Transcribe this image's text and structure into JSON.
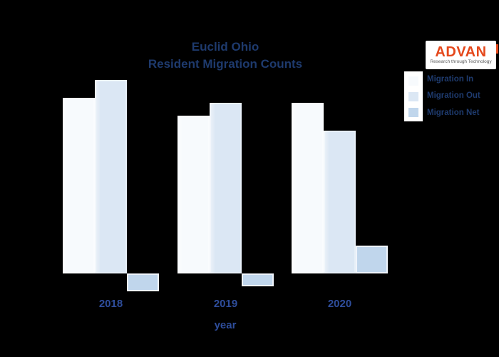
{
  "page": {
    "background_color": "#000000"
  },
  "header": {
    "title_line1": "Euclid Ohio",
    "title_line2": "Resident Migration Counts",
    "title_color": "#1e3a6d"
  },
  "logo": {
    "brand": "ADVAN",
    "tagline": "Research through Technology",
    "brand_color": "#e5481b",
    "background_color": "#ffffff"
  },
  "legend": {
    "text_color": "#1e3a6d",
    "swatch_panel_color": "#ffffff",
    "entries": [
      {
        "label": "Migration In",
        "color": "#f7fafd"
      },
      {
        "label": "Migration Out",
        "color": "#dbe7f4"
      },
      {
        "label": "Migration Net",
        "color": "#c0d6ec"
      }
    ]
  },
  "chart_data": {
    "type": "bar",
    "title": "Euclid Ohio Resident Migration Counts",
    "categories": [
      "2018",
      "2019",
      "2020"
    ],
    "series": [
      {
        "name": "Migration In",
        "color": "#f7fafd",
        "values": [
          2460,
          2210,
          2390
        ]
      },
      {
        "name": "Migration Out",
        "color": "#dbe7f4",
        "values": [
          2710,
          2390,
          2000
        ]
      },
      {
        "name": "Migration Net",
        "color": "#c0d6ec",
        "values": [
          -250,
          -180,
          390
        ]
      }
    ],
    "xlabel": "year",
    "ylabel": "",
    "ylim": [
      -500,
      3000
    ],
    "baseline": 0,
    "grid": false,
    "y_axis_visible": false,
    "legend_position": "top-right",
    "tick_color": "#2e4d9b",
    "note": "No y-axis ticks are visible in the image; values are estimates proportional to bar heights with Net = In - Out."
  }
}
